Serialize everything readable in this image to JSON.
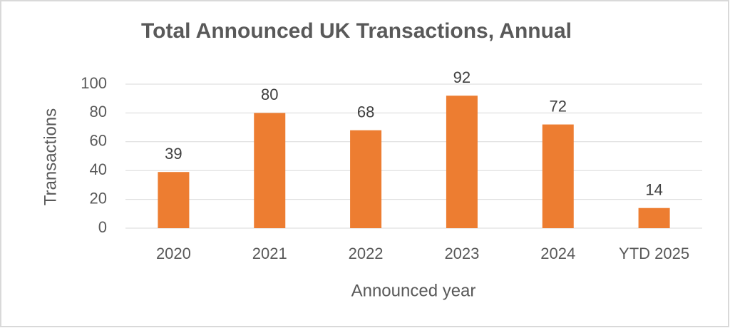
{
  "chart_data": {
    "type": "bar",
    "title": "Total Announced UK Transactions, Annual",
    "x_label": "Announced year",
    "y_label": "Transactions",
    "categories": [
      "2020",
      "2021",
      "2022",
      "2023",
      "2024",
      "YTD 2025"
    ],
    "values": [
      39,
      80,
      68,
      92,
      72,
      14
    ],
    "color": "#ed7d31",
    "ylim": [
      0,
      100
    ],
    "yticks": [
      0,
      20,
      40,
      60,
      80,
      100
    ],
    "grid": true,
    "data_labels": true
  }
}
